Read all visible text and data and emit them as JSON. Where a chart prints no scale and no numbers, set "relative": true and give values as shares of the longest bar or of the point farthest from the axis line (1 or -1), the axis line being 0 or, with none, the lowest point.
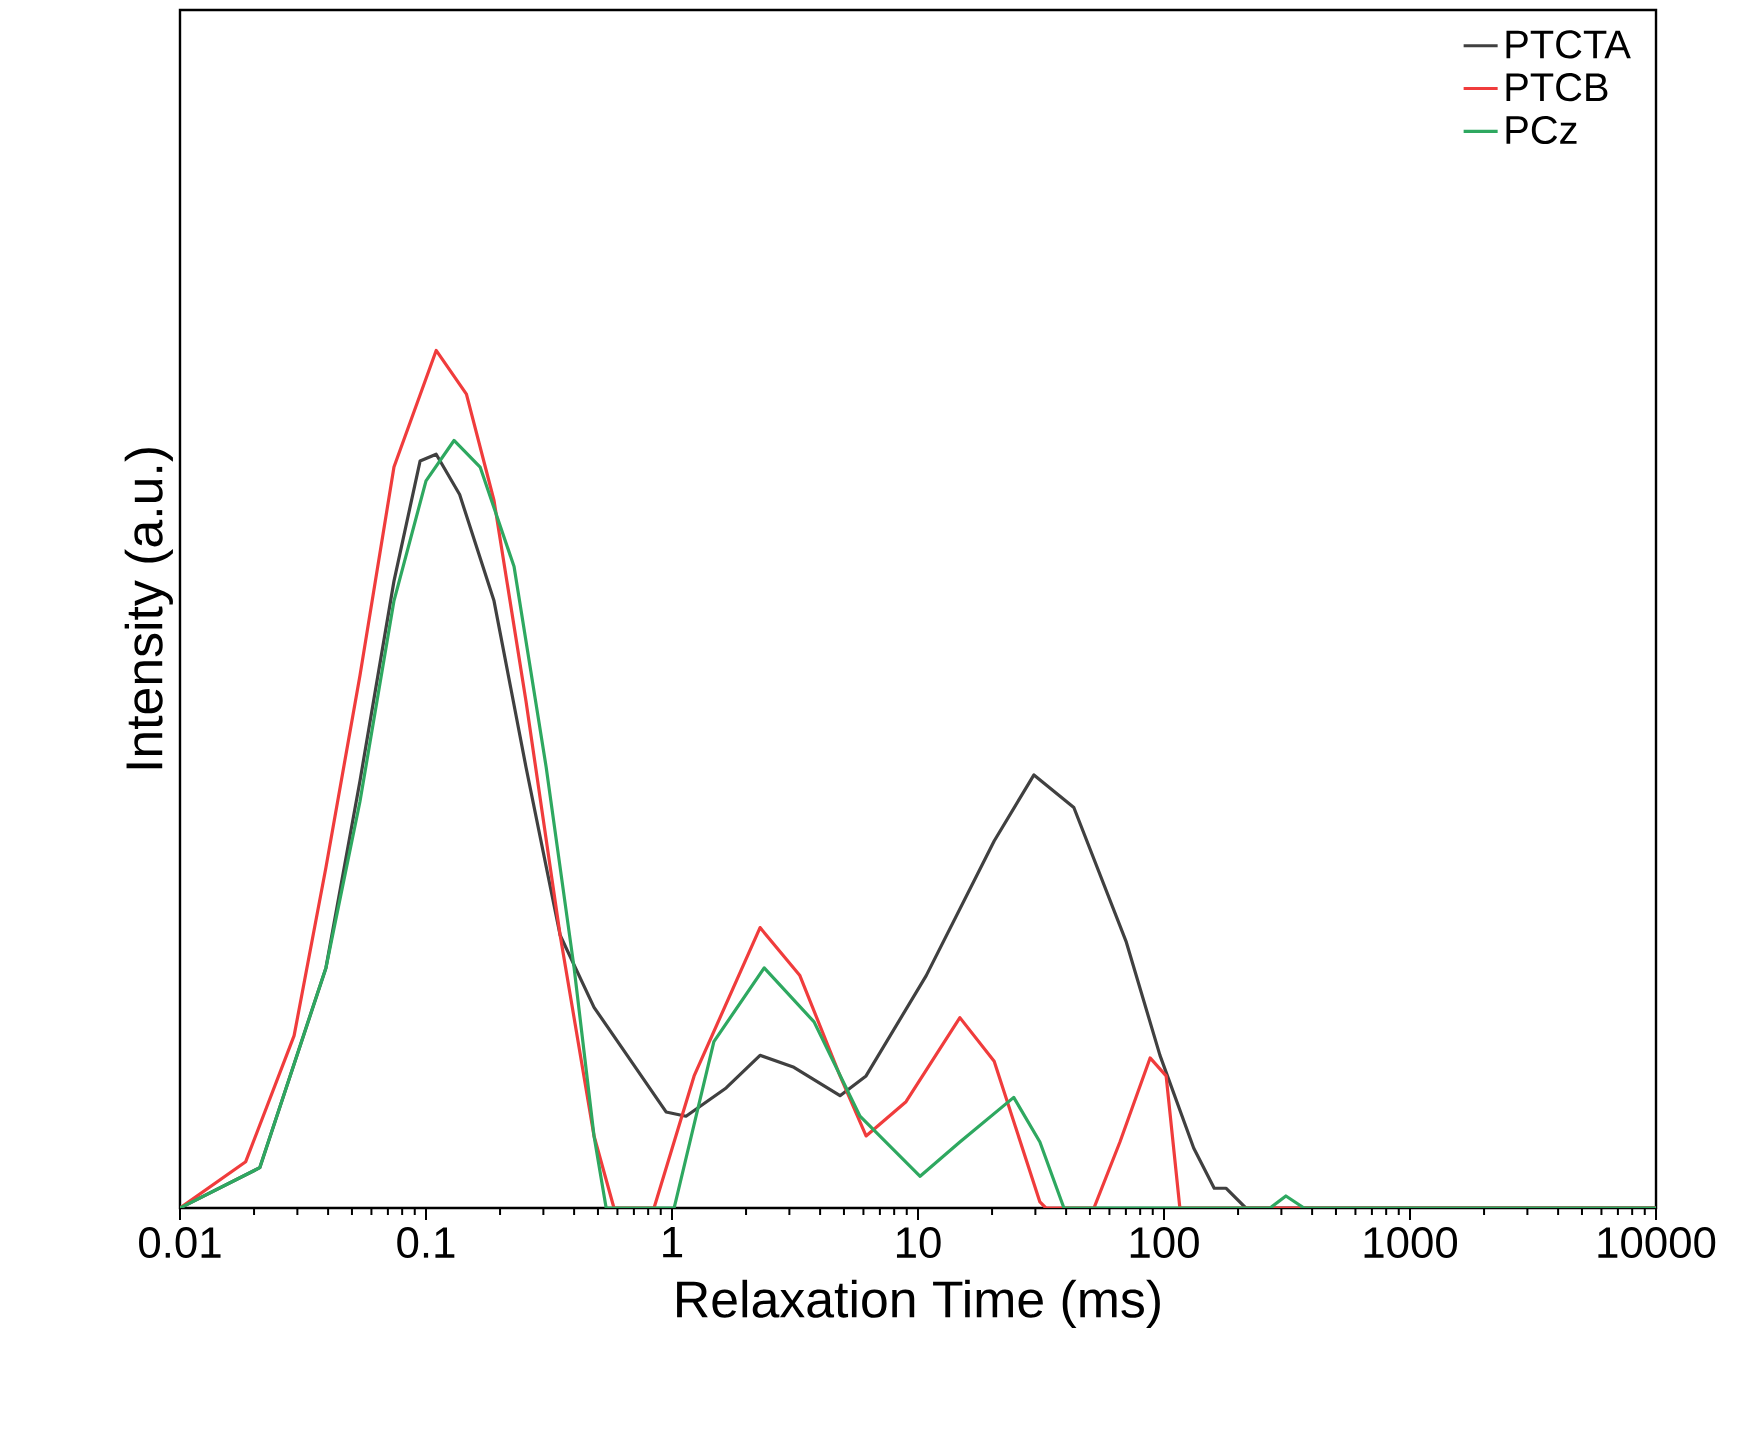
{
  "chart_data": {
    "type": "line",
    "relative": true,
    "xlabel": "Relaxation Time (ms)",
    "ylabel": "Intensity (a.u.)",
    "log": "x",
    "xlim": [
      0.01,
      10000
    ],
    "xticks": [
      0.01,
      0.1,
      1,
      10,
      100,
      1000,
      10000
    ],
    "legend": "top right",
    "marker": "none",
    "series": [
      {
        "name": "PTCTA",
        "color": "#404040",
        "x": [
          0.01,
          0.0211,
          0.0392,
          0.0539,
          0.0741,
          0.0946,
          0.11,
          0.137,
          0.189,
          0.255,
          0.351,
          0.482,
          0.65,
          0.946,
          1.14,
          1.66,
          2.28,
          3.13,
          4.82,
          6.15,
          10.8,
          20.4,
          29.6,
          43.0,
          70.1,
          96.3,
          132,
          160,
          179,
          215,
          10000
        ],
        "values": [
          0,
          0.047,
          0.28,
          0.498,
          0.731,
          0.871,
          0.879,
          0.832,
          0.708,
          0.514,
          0.318,
          0.234,
          0.18,
          0.112,
          0.107,
          0.14,
          0.178,
          0.164,
          0.131,
          0.154,
          0.271,
          0.428,
          0.505,
          0.467,
          0.311,
          0.178,
          0.07,
          0.023,
          0.023,
          0,
          0
        ]
      },
      {
        "name": "PTCB",
        "color": "#f03c3c",
        "x": [
          0.01,
          0.0185,
          0.0291,
          0.0392,
          0.0539,
          0.0741,
          0.11,
          0.146,
          0.189,
          0.255,
          0.351,
          0.482,
          0.581,
          0.845,
          1.23,
          2.28,
          3.31,
          4.82,
          6.15,
          8.94,
          14.8,
          20.4,
          31.3,
          33.1,
          51.9,
          66.2,
          87.8,
          102,
          116,
          10000
        ],
        "values": [
          0,
          0.054,
          0.201,
          0.397,
          0.621,
          0.864,
          1.0,
          0.949,
          0.825,
          0.591,
          0.318,
          0.084,
          0,
          0,
          0.154,
          0.327,
          0.271,
          0.154,
          0.084,
          0.124,
          0.222,
          0.171,
          0.007,
          0,
          0,
          0.077,
          0.175,
          0.154,
          0,
          0
        ]
      },
      {
        "name": "PCz",
        "color": "#2ea860",
        "x": [
          0.01,
          0.0211,
          0.0392,
          0.0539,
          0.0741,
          0.1,
          0.13,
          0.166,
          0.228,
          0.308,
          0.4,
          0.482,
          0.54,
          1.02,
          1.48,
          2.37,
          3.78,
          5.81,
          10.2,
          14.8,
          24.5,
          31.3,
          39.2,
          270,
          313,
          371,
          10000
        ],
        "values": [
          0,
          0.047,
          0.28,
          0.474,
          0.708,
          0.848,
          0.895,
          0.864,
          0.748,
          0.514,
          0.28,
          0.084,
          0,
          0,
          0.194,
          0.28,
          0.217,
          0.107,
          0.037,
          0.077,
          0.129,
          0.077,
          0,
          0,
          0.014,
          0,
          0
        ]
      }
    ]
  }
}
